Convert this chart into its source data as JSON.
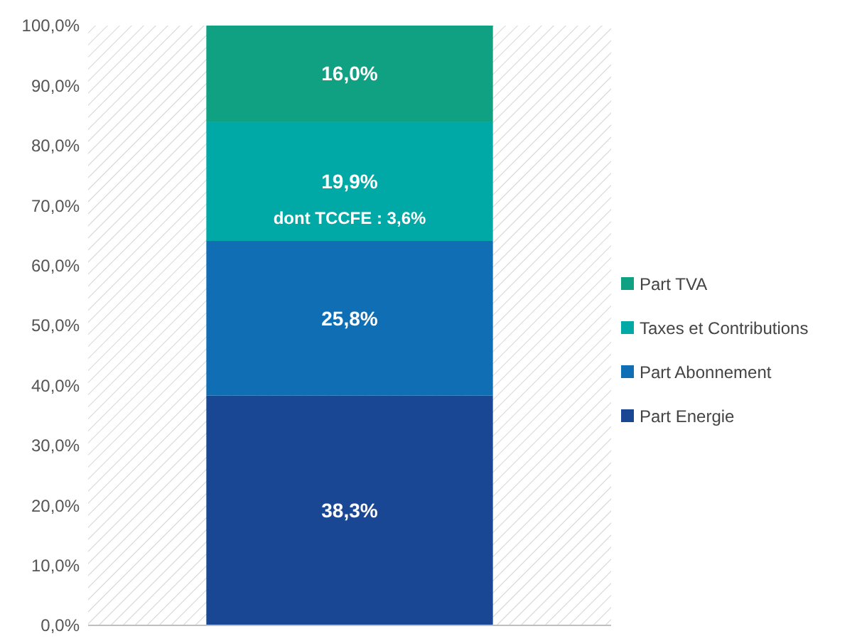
{
  "chart_data": {
    "type": "bar",
    "stacked": true,
    "categories": [
      null
    ],
    "series": [
      {
        "name": "Part Energie",
        "color": "#1a4793",
        "values": [
          38.3
        ],
        "value_labels": [
          "38,3%"
        ]
      },
      {
        "name": "Part Abonnement",
        "color": "#106fb4",
        "values": [
          25.8
        ],
        "value_labels": [
          "25,8%"
        ]
      },
      {
        "name": "Taxes et Contributions",
        "color": "#00a9a5",
        "values": [
          19.9
        ],
        "value_labels": [
          "19,9%"
        ]
      },
      {
        "name": "Part TVA",
        "color": "#10a082",
        "values": [
          16.0
        ],
        "value_labels": [
          "16,0%"
        ]
      }
    ],
    "annotations": [
      "dont TCCFE : 3,6%"
    ],
    "ylim": [
      0,
      100
    ],
    "yticks": [
      {
        "value": 0,
        "label": "0,0%"
      },
      {
        "value": 10,
        "label": "10,0%"
      },
      {
        "value": 20,
        "label": "20,0%"
      },
      {
        "value": 30,
        "label": "30,0%"
      },
      {
        "value": 40,
        "label": "40,0%"
      },
      {
        "value": 50,
        "label": "50,0%"
      },
      {
        "value": 60,
        "label": "60,0%"
      },
      {
        "value": 70,
        "label": "70,0%"
      },
      {
        "value": 80,
        "label": "80,0%"
      },
      {
        "value": 90,
        "label": "90,0%"
      },
      {
        "value": 100,
        "label": "100,0%"
      }
    ],
    "grid": false,
    "legend": "right"
  }
}
